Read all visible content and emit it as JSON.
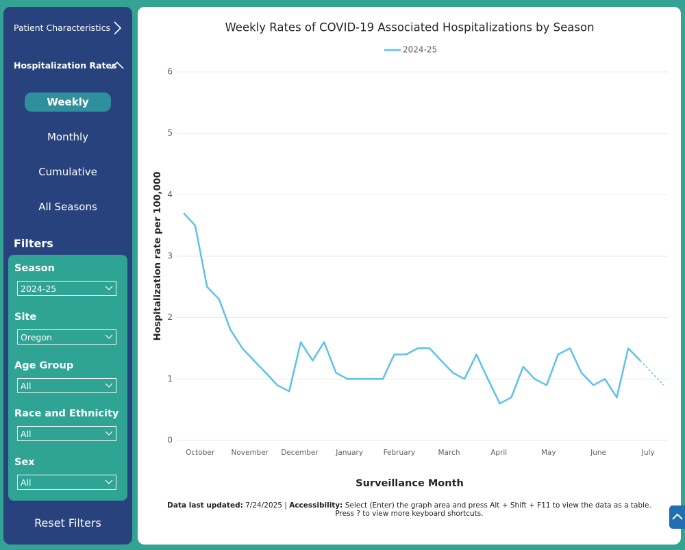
{
  "sidebar": {
    "nav": [
      {
        "label": "Patient Characteristics"
      },
      {
        "label": "Hospitalization Rates"
      }
    ],
    "rate_buttons": [
      "Weekly",
      "Monthly",
      "Cumulative",
      "All Seasons"
    ],
    "selected_button": "Weekly",
    "filters_title": "Filters",
    "filters": [
      {
        "label": "Season",
        "value": "2024-25"
      },
      {
        "label": "Site",
        "value": "Oregon"
      },
      {
        "label": "Age Group",
        "value": "All"
      },
      {
        "label": "Race and Ethnicity",
        "value": "All"
      },
      {
        "label": "Sex",
        "value": "All"
      }
    ],
    "reset": "Reset Filters"
  },
  "chart_data": {
    "type": "line",
    "title": "Weekly Rates of COVID-19 Associated Hospitalizations by Season",
    "x_label": "Surveillance Month",
    "y_label": "Hospitalization rate per 100,000",
    "legend_position": "top",
    "grid": true,
    "xlim": [
      -0.47,
      9.41
    ],
    "xticks": [
      {
        "value": 0,
        "label": "October"
      },
      {
        "value": 1,
        "label": "November"
      },
      {
        "value": 2,
        "label": "December"
      },
      {
        "value": 3,
        "label": "January"
      },
      {
        "value": 4,
        "label": "February"
      },
      {
        "value": 5,
        "label": "March"
      },
      {
        "value": 6,
        "label": "April"
      },
      {
        "value": 7,
        "label": "May"
      },
      {
        "value": 8,
        "label": "June"
      },
      {
        "value": 9,
        "label": "July"
      }
    ],
    "ylim": [
      0,
      6
    ],
    "yticks": [
      0,
      1,
      2,
      3,
      4,
      5,
      6
    ],
    "dashed_from_index": 39,
    "series": [
      {
        "name": "2024-25",
        "color": "#5bc2e7",
        "x": [
          -0.33,
          -0.1,
          0.14,
          0.38,
          0.61,
          0.85,
          1.08,
          1.32,
          1.55,
          1.79,
          2.02,
          2.26,
          2.49,
          2.73,
          2.96,
          3.2,
          3.43,
          3.67,
          3.9,
          4.14,
          4.37,
          4.61,
          4.84,
          5.08,
          5.31,
          5.55,
          5.78,
          6.02,
          6.25,
          6.49,
          6.72,
          6.96,
          7.19,
          7.43,
          7.66,
          7.9,
          8.13,
          8.37,
          8.6,
          8.84,
          9.31
        ],
        "values": [
          3.7,
          3.5,
          2.5,
          2.3,
          1.8,
          1.5,
          1.3,
          1.1,
          0.9,
          0.8,
          1.6,
          1.3,
          1.6,
          1.1,
          1.0,
          1.0,
          1.0,
          1.0,
          1.4,
          1.4,
          1.5,
          1.5,
          1.3,
          1.1,
          1.0,
          1.4,
          1.0,
          0.6,
          0.7,
          1.2,
          1.0,
          0.9,
          1.4,
          1.5,
          1.1,
          0.9,
          1.0,
          0.7,
          1.5,
          1.3,
          0.9
        ]
      }
    ]
  },
  "footnote": {
    "updated_label": "Data last updated:",
    "updated": "7/24/2025 |",
    "access_label": "Accessibility:",
    "access_text": "Select (Enter) the graph area and press Alt + Shift + F11 to view the data as a table.",
    "line2": "Press ? to view more keyboard shortcuts."
  }
}
